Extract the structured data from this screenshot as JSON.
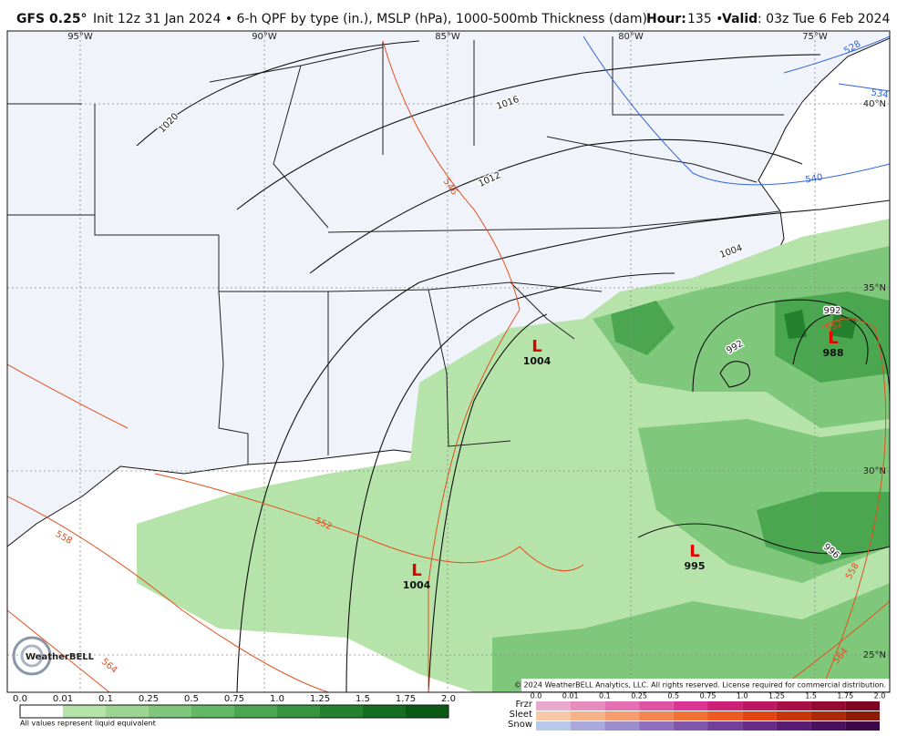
{
  "header": {
    "model": "GFS 0.25°",
    "description": "Init 12z 31 Jan 2024 • 6-h QPF by type (in.), MSLP (hPa), 1000-500mb Thickness (dam)",
    "hour_label": "Hour:",
    "hour": "135 •",
    "valid_label": "Valid",
    "valid": ": 03z Tue 6 Feb 2024"
  },
  "map": {
    "longitudes": [
      "95°W",
      "90°W",
      "85°W",
      "80°W",
      "75°W"
    ],
    "latitudes": [
      "40°N",
      "35°N",
      "30°N",
      "25°N"
    ],
    "isobar_labels": [
      "1020",
      "1016",
      "1012",
      "1004",
      "992",
      "992",
      "996"
    ],
    "thickness_labels": [
      "528",
      "534",
      "540",
      "546",
      "552",
      "558",
      "564",
      "564",
      "558",
      "552"
    ],
    "lows": [
      {
        "symbol": "L",
        "pressure": "1004"
      },
      {
        "symbol": "L",
        "pressure": "1004"
      },
      {
        "symbol": "L",
        "pressure": "995"
      },
      {
        "symbol": "L",
        "pressure": "988"
      }
    ],
    "logo": "WeatherBELL",
    "copyright": "© 2024 WeatherBELL Analytics, LLC. All rights reserved. License required for commercial distribution."
  },
  "legend": {
    "rain_ticks": [
      "0.0",
      "0.01",
      "0.1",
      "0.25",
      "0.5",
      "0.75",
      "1.0",
      "1.25",
      "1.5",
      "1.75",
      "2.0"
    ],
    "rain_colors": [
      "#ffffff",
      "#b6e3a9",
      "#9ad592",
      "#7fc77b",
      "#62b863",
      "#4aa74f",
      "#36943e",
      "#24812d",
      "#156d20",
      "#0b5916",
      "#04440f"
    ],
    "note": "All values represent liquid equivalent",
    "types": [
      "Frzr",
      "Sleet",
      "Snow"
    ],
    "type_ticks": [
      "0.0",
      "0.01",
      "0.1",
      "0.25",
      "0.5",
      "0.75",
      "1.0",
      "1.25",
      "1.5",
      "1.75",
      "2.0"
    ],
    "type_colors": [
      [
        "#e8a9cc",
        "#e68dc0",
        "#e46fb2",
        "#e052a4",
        "#db3495",
        "#cc2079",
        "#bb1660",
        "#a80f47",
        "#950a33",
        "#7e0620"
      ],
      [
        "#f7c9a6",
        "#f6b389",
        "#f59d6c",
        "#f4874f",
        "#f27236",
        "#ee5b22",
        "#e24512",
        "#c9350a",
        "#ad2806",
        "#8e1c04"
      ],
      [
        "#b7c8e8",
        "#a9a9dc",
        "#9b8ccc",
        "#8e70bd",
        "#8156ad",
        "#743f9b",
        "#672c88",
        "#591d73",
        "#4a115e",
        "#3b0749"
      ]
    ]
  }
}
